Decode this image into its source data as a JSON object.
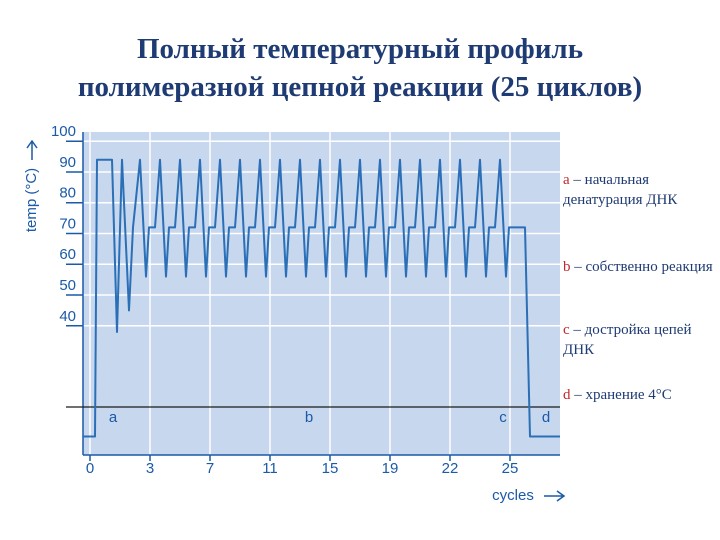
{
  "chart_data": {
    "type": "line",
    "title": [
      "Полный температурный профиль",
      "полимеразной цепной реакции (25 циклов)"
    ],
    "y_label": "temp (°C)",
    "x_label": "cycles",
    "xlim": [
      -0.35,
      23.5
    ],
    "ylim": [
      -2,
      103
    ],
    "xticks": [
      {
        "value": 0,
        "label": "0"
      },
      {
        "value": 3,
        "label": "3"
      },
      {
        "value": 6,
        "label": "7"
      },
      {
        "value": 9,
        "label": "11"
      },
      {
        "value": 12,
        "label": "15"
      },
      {
        "value": 15,
        "label": "19"
      },
      {
        "value": 18,
        "label": "22"
      },
      {
        "value": 21,
        "label": "25"
      }
    ],
    "yticks": [
      40,
      50,
      60,
      70,
      80,
      90,
      100
    ],
    "grid": true,
    "x": [
      -0.35,
      0.25,
      0.35,
      1.1,
      1.35,
      1.6,
      1.95,
      2.15,
      2.5,
      2.8,
      2.95,
      3.25,
      3.5,
      3.8,
      3.95,
      4.25,
      4.5,
      4.8,
      4.95,
      5.25,
      5.5,
      5.8,
      5.95,
      6.25,
      6.5,
      6.8,
      6.95,
      7.25,
      7.5,
      7.8,
      7.95,
      8.25,
      8.5,
      8.8,
      8.95,
      9.25,
      9.5,
      9.8,
      9.95,
      10.25,
      10.5,
      10.8,
      10.95,
      11.25,
      11.5,
      11.8,
      11.95,
      12.25,
      12.5,
      12.8,
      12.95,
      13.25,
      13.5,
      13.8,
      13.95,
      14.25,
      14.5,
      14.8,
      14.95,
      15.25,
      15.5,
      15.8,
      15.95,
      16.25,
      16.5,
      16.8,
      16.95,
      17.25,
      17.5,
      17.8,
      17.95,
      18.25,
      18.5,
      18.8,
      18.95,
      19.25,
      19.5,
      19.8,
      19.95,
      20.25,
      20.5,
      20.8,
      20.95,
      21.75,
      22.0,
      23.5
    ],
    "series": [
      {
        "color": "#2b6fb6",
        "values": [
          4,
          4,
          94,
          94,
          38,
          94,
          45,
          72,
          94,
          56,
          72,
          72,
          94,
          56,
          72,
          72,
          94,
          56,
          72,
          72,
          94,
          56,
          72,
          72,
          94,
          56,
          72,
          72,
          94,
          56,
          72,
          72,
          94,
          56,
          72,
          72,
          94,
          56,
          72,
          72,
          94,
          56,
          72,
          72,
          94,
          56,
          72,
          72,
          94,
          56,
          72,
          72,
          94,
          56,
          72,
          72,
          94,
          56,
          72,
          72,
          94,
          56,
          72,
          72,
          94,
          56,
          72,
          72,
          94,
          56,
          72,
          72,
          94,
          56,
          72,
          72,
          94,
          56,
          72,
          72,
          94,
          56,
          72,
          72,
          4,
          4
        ]
      }
    ],
    "phase_labels": [
      "a",
      "b",
      "c",
      "d"
    ],
    "legend": [
      {
        "key": "a",
        "text": "– начальная денатурация ДНК"
      },
      {
        "key": "b",
        "text": "– собственно реакция"
      },
      {
        "key": "c",
        "text": "– достройка цепей ДНК"
      },
      {
        "key": "d",
        "text": "– хранение 4°С"
      }
    ]
  }
}
